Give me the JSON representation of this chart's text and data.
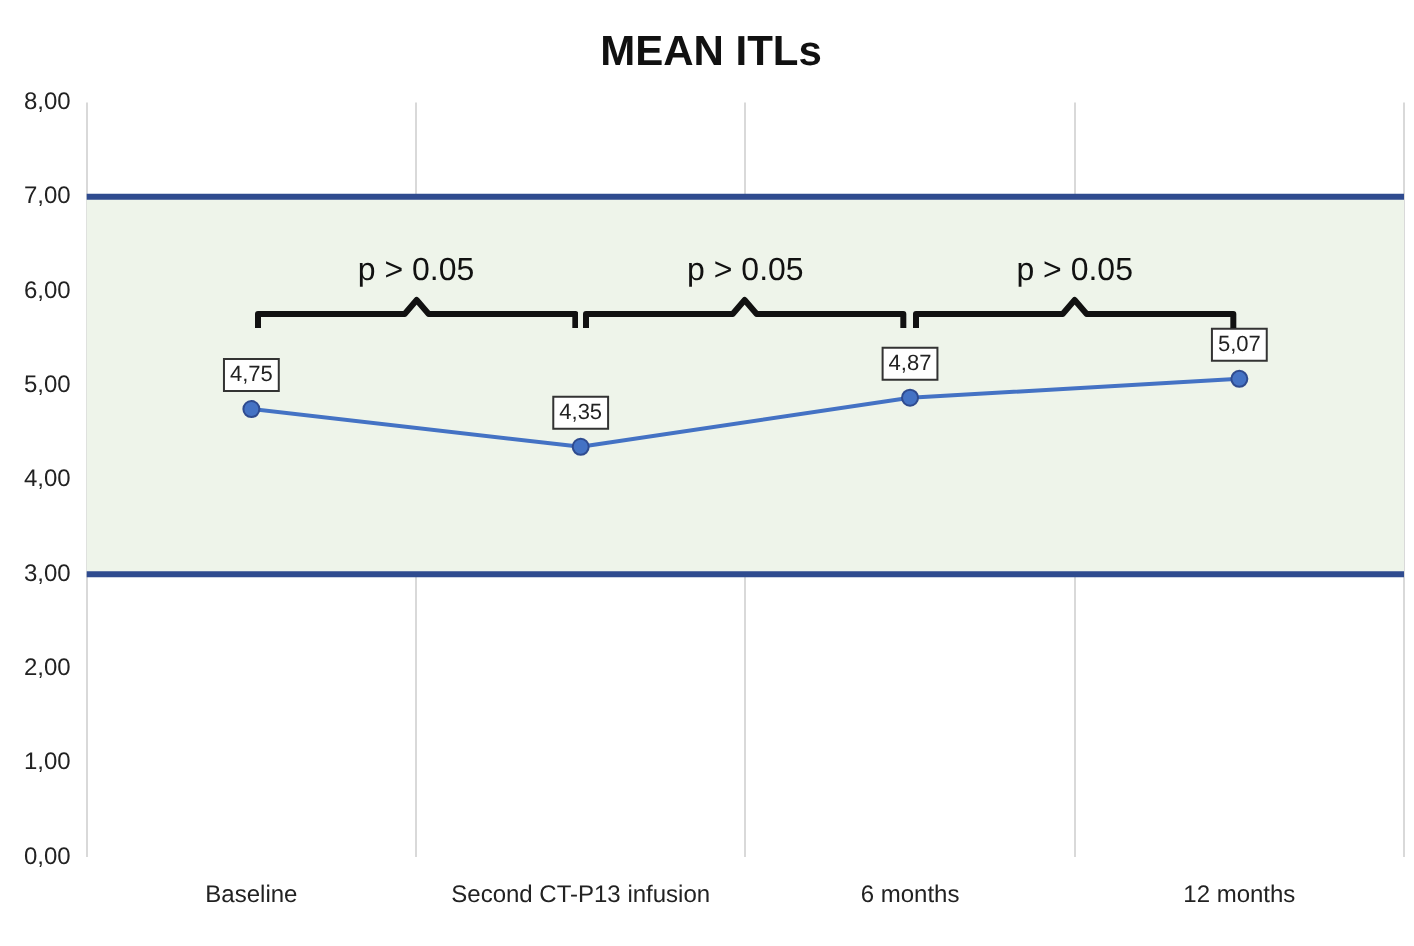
{
  "chart_data": {
    "type": "line",
    "title": "MEAN ITLs",
    "categories": [
      "Baseline",
      "Second CT-P13 infusion",
      "6 months",
      "12 months"
    ],
    "values": [
      4.75,
      4.35,
      4.87,
      5.07
    ],
    "value_labels": [
      "4,75",
      "4,35",
      "4,87",
      "5,07"
    ],
    "color": "#4472c4",
    "marker": "circle",
    "line_style": "solid",
    "ylim": [
      0,
      8
    ],
    "yticks": [
      {
        "value": 0,
        "label": "0,00"
      },
      {
        "value": 1,
        "label": "1,00"
      },
      {
        "value": 2,
        "label": "2,00"
      },
      {
        "value": 3,
        "label": "3,00"
      },
      {
        "value": 4,
        "label": "4,00"
      },
      {
        "value": 5,
        "label": "5,00"
      },
      {
        "value": 6,
        "label": "6,00"
      },
      {
        "value": 7,
        "label": "7,00"
      },
      {
        "value": 8,
        "label": "8,00"
      }
    ],
    "bands": [
      {
        "axis": "y",
        "from": 3,
        "to": 7,
        "color": "#eef4ea"
      }
    ],
    "ref_lines": [
      {
        "axis": "y",
        "value": 3,
        "color": "#2f4b8f"
      },
      {
        "axis": "y",
        "value": 7,
        "color": "#2f4b8f"
      }
    ],
    "annotations": [
      "p > 0.05",
      "p > 0.05",
      "p > 0.05"
    ],
    "grid": "x",
    "legend": false
  }
}
